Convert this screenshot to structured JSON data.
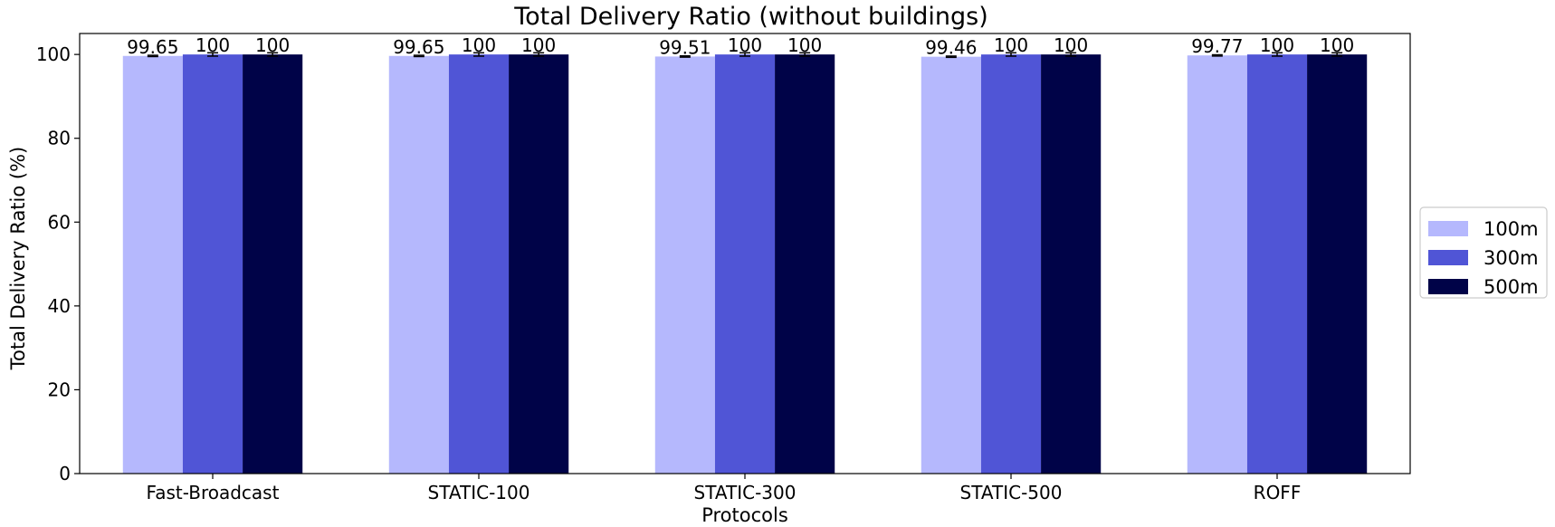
{
  "chart_data": {
    "type": "bar",
    "title": "Total Delivery Ratio (without buildings)",
    "xlabel": "Protocols",
    "ylabel": "Total Delivery Ratio (%)",
    "categories": [
      "Fast-Broadcast",
      "STATIC-100",
      "STATIC-300",
      "STATIC-500",
      "ROFF"
    ],
    "ylim": [
      0,
      105
    ],
    "yticks": [
      0,
      20,
      40,
      60,
      80,
      100
    ],
    "grid": false,
    "legend_position": "right",
    "series": [
      {
        "name": "100m",
        "color": "#b5b8fd",
        "values": [
          99.65,
          99.65,
          99.51,
          99.46,
          99.77
        ],
        "labels": [
          "99.65",
          "99.65",
          "99.51",
          "99.46",
          "99.77"
        ],
        "error": [
          0.15,
          0.15,
          0.15,
          0.15,
          0.15
        ]
      },
      {
        "name": "300m",
        "color": "#5055d6",
        "values": [
          100,
          100,
          100,
          100,
          100
        ],
        "labels": [
          "100",
          "100",
          "100",
          "100",
          "100"
        ],
        "error": [
          0.4,
          0.4,
          0.4,
          0.4,
          0.4
        ]
      },
      {
        "name": "500m",
        "color": "#000348",
        "values": [
          100,
          100,
          100,
          100,
          100
        ],
        "labels": [
          "100",
          "100",
          "100",
          "100",
          "100"
        ],
        "error": [
          0.4,
          0.4,
          0.4,
          0.4,
          0.4
        ]
      }
    ]
  }
}
